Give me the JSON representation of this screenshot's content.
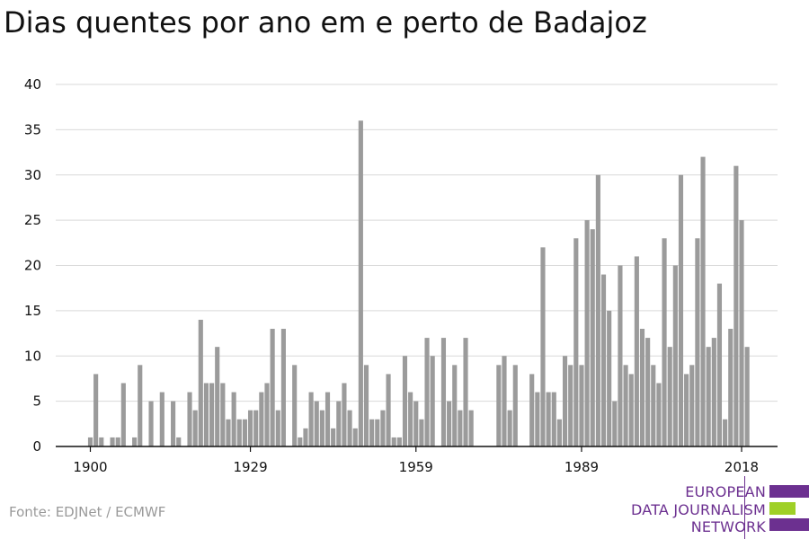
{
  "chart_data": {
    "type": "bar",
    "title": "Dias quentes por ano em e perto de Badajoz",
    "xlabel": "",
    "ylabel": "",
    "ylim": [
      0,
      40
    ],
    "yticks": [
      0,
      5,
      10,
      15,
      20,
      25,
      30,
      35,
      40
    ],
    "xticks": [
      1900,
      1929,
      1959,
      1989,
      2018
    ],
    "grid": true,
    "x_start": 1900,
    "values": [
      1,
      8,
      1,
      0,
      1,
      1,
      7,
      0,
      1,
      9,
      0,
      5,
      0,
      6,
      0,
      5,
      1,
      0,
      6,
      4,
      14,
      7,
      7,
      11,
      7,
      3,
      6,
      3,
      3,
      4,
      4,
      6,
      7,
      13,
      4,
      13,
      0,
      9,
      1,
      2,
      6,
      5,
      4,
      6,
      2,
      5,
      7,
      4,
      2,
      36,
      9,
      3,
      3,
      4,
      8,
      1,
      1,
      10,
      6,
      5,
      3,
      12,
      10,
      0,
      12,
      5,
      9,
      4,
      12,
      4,
      0,
      0,
      0,
      0,
      9,
      10,
      4,
      9,
      0,
      0,
      8,
      6,
      22,
      6,
      6,
      3,
      10,
      9,
      23,
      9,
      25,
      24,
      30,
      19,
      15,
      5,
      20,
      9,
      8,
      21,
      13,
      12,
      9,
      7,
      23,
      11,
      20,
      30,
      8,
      9,
      23,
      32,
      11,
      12,
      18,
      3,
      13,
      31,
      25,
      11
    ],
    "bar_color": "#9b9b9b"
  },
  "source": "Fonte: EDJNet / ECMWF",
  "logo": {
    "lines": [
      "EUROPEAN",
      "DATA JOURNALISM",
      "NETWORK"
    ],
    "text_color": "#6c3090",
    "bar_colors": [
      "#6c3090",
      "#9fd027",
      "#6c3090"
    ]
  }
}
